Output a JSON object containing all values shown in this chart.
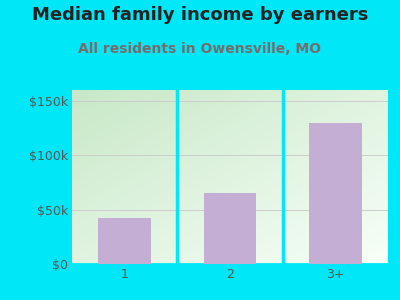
{
  "title": "Median family income by earners",
  "subtitle": "All residents in Owensville, MO",
  "categories": [
    "1",
    "2",
    "3+"
  ],
  "values": [
    42000,
    65000,
    130000
  ],
  "bar_color": "#c4aed4",
  "bar_edge_color": "#b09ac0",
  "title_color": "#222222",
  "subtitle_color": "#7a6a6a",
  "background_color": "#00e8f8",
  "plot_bg_color_top_left": "#c8e8c8",
  "plot_bg_color_bottom_right": "#f5fff5",
  "yticks": [
    0,
    50000,
    100000,
    150000
  ],
  "ytick_labels": [
    "$0",
    "$50k",
    "$100k",
    "$150k"
  ],
  "ylim": [
    0,
    160000
  ],
  "title_fontsize": 13,
  "subtitle_fontsize": 10,
  "tick_fontsize": 9,
  "grid_color": "#cccccc",
  "divider_color": "#00e8f8"
}
